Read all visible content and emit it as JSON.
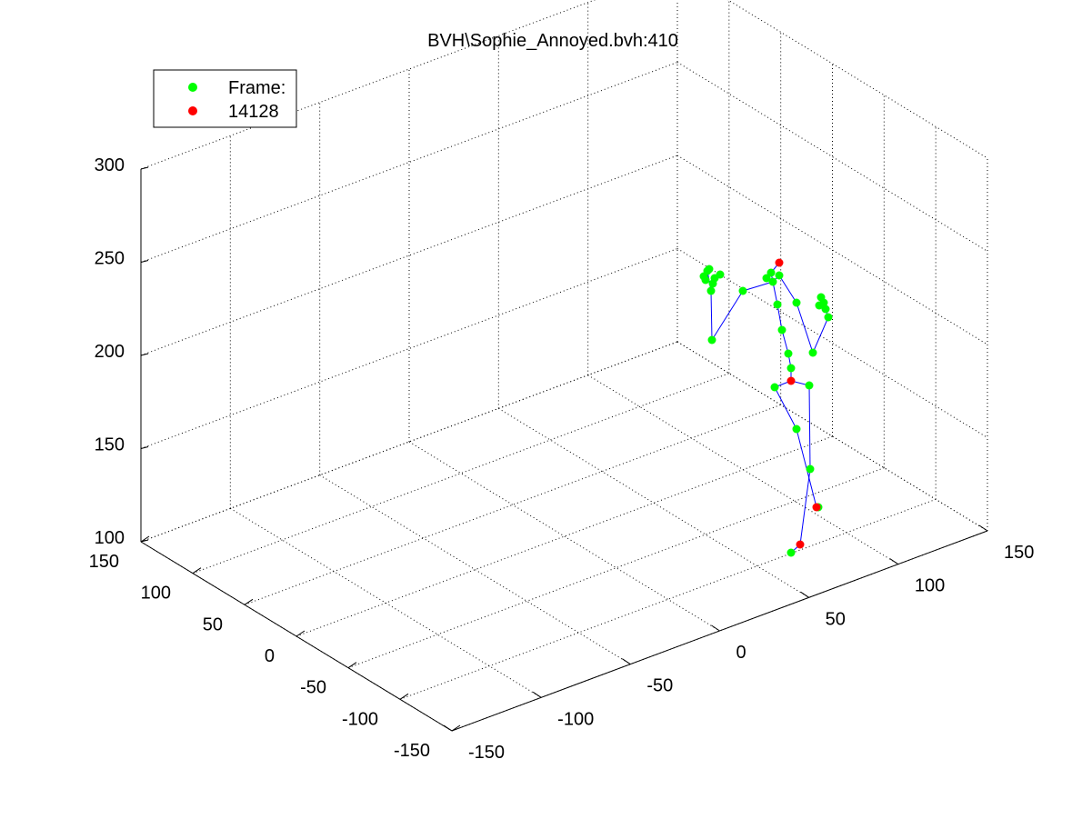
{
  "chart_data": {
    "type": "scatter",
    "title": "BVH\\Sophie_Annoyed.bvh:410",
    "legend": {
      "placement": "top-left",
      "entries": [
        {
          "label": "Frame:",
          "color": "#00ff00"
        },
        {
          "label": "14128",
          "color": "#ff0000"
        }
      ]
    },
    "grid": true,
    "x_axis": {
      "ticks": [
        "-150",
        "-100",
        "-50",
        "0",
        "50",
        "100",
        "150"
      ],
      "range": [
        -150,
        150
      ]
    },
    "y_axis": {
      "ticks": [
        "-150",
        "-100",
        "-50",
        "0",
        "50",
        "100",
        "150"
      ],
      "range": [
        -150,
        150
      ]
    },
    "z_axis": {
      "ticks": [
        "100",
        "150",
        "200",
        "250",
        "300"
      ],
      "range": [
        100,
        300
      ]
    },
    "colors": {
      "green_points": "#00ff00",
      "red_points": "#ff0000",
      "skeleton": "#0000ff",
      "grid": "#000000"
    },
    "points_2d_note": "",
    "joints": [
      {
        "id": "head_top",
        "color": "red",
        "px": [
          857,
          289
        ]
      },
      {
        "id": "head",
        "color": "green",
        "px": [
          848,
          300
        ]
      },
      {
        "id": "neck_r",
        "color": "green",
        "px": [
          857,
          303
        ]
      },
      {
        "id": "neck_l",
        "color": "green",
        "px": [
          843,
          306
        ]
      },
      {
        "id": "neck_c",
        "color": "green",
        "px": [
          850,
          310
        ]
      },
      {
        "id": "r_shoulder",
        "color": "green",
        "px": [
          817,
          320
        ]
      },
      {
        "id": "l_shoulder",
        "color": "green",
        "px": [
          876,
          333
        ]
      },
      {
        "id": "spine1",
        "color": "green",
        "px": [
          855,
          335
        ]
      },
      {
        "id": "spine2",
        "color": "green",
        "px": [
          860,
          363
        ]
      },
      {
        "id": "spine3",
        "color": "green",
        "px": [
          867,
          389
        ]
      },
      {
        "id": "spine4",
        "color": "green",
        "px": [
          870,
          405
        ]
      },
      {
        "id": "hips",
        "color": "red",
        "px": [
          870,
          419
        ]
      },
      {
        "id": "r_hip",
        "color": "green",
        "px": [
          852,
          426
        ]
      },
      {
        "id": "l_hip",
        "color": "green",
        "px": [
          890,
          424
        ]
      },
      {
        "id": "r_knee",
        "color": "green",
        "px": [
          876,
          472
        ]
      },
      {
        "id": "l_knee",
        "color": "green",
        "px": [
          891,
          516
        ]
      },
      {
        "id": "l_ankle_a",
        "color": "green",
        "px": [
          900,
          558
        ]
      },
      {
        "id": "l_ankle",
        "color": "red",
        "px": [
          898,
          558
        ]
      },
      {
        "id": "r_ankle",
        "color": "red",
        "px": [
          880,
          599
        ]
      },
      {
        "id": "r_toe",
        "color": "green",
        "px": [
          870,
          608
        ]
      },
      {
        "id": "r_elbow",
        "color": "green",
        "px": [
          783,
          374
        ]
      },
      {
        "id": "r_wrist",
        "color": "green",
        "px": [
          782,
          320
        ]
      },
      {
        "id": "r_hand1",
        "color": "green",
        "px": [
          778,
          298
        ]
      },
      {
        "id": "r_hand2",
        "color": "green",
        "px": [
          774,
          304
        ]
      },
      {
        "id": "r_hand3",
        "color": "green",
        "px": [
          780,
          296
        ]
      },
      {
        "id": "r_hand4",
        "color": "green",
        "px": [
          786,
          306
        ]
      },
      {
        "id": "r_hand5",
        "color": "green",
        "px": [
          792,
          302
        ]
      },
      {
        "id": "r_hand6",
        "color": "green",
        "px": [
          784,
          312
        ]
      },
      {
        "id": "r_hand7",
        "color": "green",
        "px": [
          776,
          308
        ]
      },
      {
        "id": "l_elbow",
        "color": "green",
        "px": [
          894,
          388
        ]
      },
      {
        "id": "l_wrist",
        "color": "green",
        "px": [
          911,
          349
        ]
      },
      {
        "id": "l_hand1",
        "color": "green",
        "px": [
          903,
          327
        ]
      },
      {
        "id": "l_hand2",
        "color": "green",
        "px": [
          906,
          333
        ]
      },
      {
        "id": "l_hand3",
        "color": "green",
        "px": [
          901,
          336
        ]
      },
      {
        "id": "l_hand4",
        "color": "green",
        "px": [
          908,
          340
        ]
      }
    ],
    "bones": [
      [
        "head_top",
        "head"
      ],
      [
        "head",
        "neck_c"
      ],
      [
        "neck_r",
        "neck_c"
      ],
      [
        "neck_l",
        "neck_c"
      ],
      [
        "neck_c",
        "r_shoulder"
      ],
      [
        "r_shoulder",
        "r_elbow"
      ],
      [
        "r_elbow",
        "r_wrist"
      ],
      [
        "r_wrist",
        "r_hand1"
      ],
      [
        "neck_r",
        "l_shoulder"
      ],
      [
        "l_shoulder",
        "l_elbow"
      ],
      [
        "l_elbow",
        "l_wrist"
      ],
      [
        "l_wrist",
        "l_hand1"
      ],
      [
        "neck_c",
        "spine1"
      ],
      [
        "spine1",
        "spine2"
      ],
      [
        "spine2",
        "spine3"
      ],
      [
        "spine3",
        "spine4"
      ],
      [
        "spine4",
        "hips"
      ],
      [
        "hips",
        "r_hip"
      ],
      [
        "hips",
        "l_hip"
      ],
      [
        "r_hip",
        "r_knee"
      ],
      [
        "r_knee",
        "l_ankle"
      ],
      [
        "l_hip",
        "l_knee"
      ],
      [
        "l_knee",
        "r_ankle"
      ],
      [
        "r_ankle",
        "r_toe"
      ]
    ]
  }
}
